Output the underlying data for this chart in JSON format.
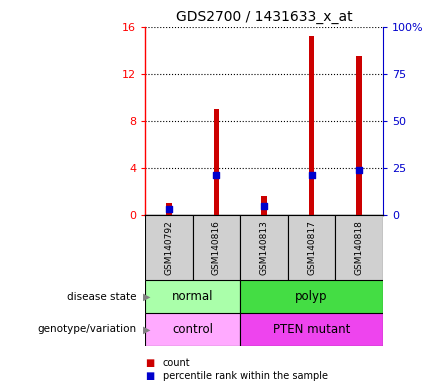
{
  "title": "GDS2700 / 1431633_x_at",
  "samples": [
    "GSM140792",
    "GSM140816",
    "GSM140813",
    "GSM140817",
    "GSM140818"
  ],
  "count_values": [
    1.0,
    9.0,
    1.6,
    15.2,
    13.5
  ],
  "percentile_values": [
    0.48,
    3.44,
    0.8,
    3.44,
    3.84
  ],
  "ylim_left": [
    0,
    16
  ],
  "ylim_right": [
    0,
    100
  ],
  "yticks_left": [
    0,
    4,
    8,
    12,
    16
  ],
  "yticks_right": [
    0,
    25,
    50,
    75,
    100
  ],
  "ytick_labels_left": [
    "0",
    "4",
    "8",
    "12",
    "16"
  ],
  "ytick_labels_right": [
    "0",
    "25",
    "50",
    "75",
    "100%"
  ],
  "bar_color": "#cc0000",
  "dot_color": "#0000cc",
  "disease_state_groups": [
    {
      "label": "normal",
      "start": 0,
      "end": 1,
      "color": "#aaffaa"
    },
    {
      "label": "polyp",
      "start": 2,
      "end": 4,
      "color": "#44dd44"
    }
  ],
  "genotype_variation_groups": [
    {
      "label": "control",
      "start": 0,
      "end": 1,
      "color": "#ffaaff"
    },
    {
      "label": "PTEN mutant",
      "start": 2,
      "end": 4,
      "color": "#ee44ee"
    }
  ],
  "row_labels": [
    "disease state",
    "genotype/variation"
  ],
  "legend_items": [
    {
      "color": "#cc0000",
      "label": "count"
    },
    {
      "color": "#0000cc",
      "label": "percentile rank within the sample"
    }
  ],
  "background_color": "#ffffff",
  "sample_box_color": "#d0d0d0",
  "right_axis_color": "#0000cc"
}
